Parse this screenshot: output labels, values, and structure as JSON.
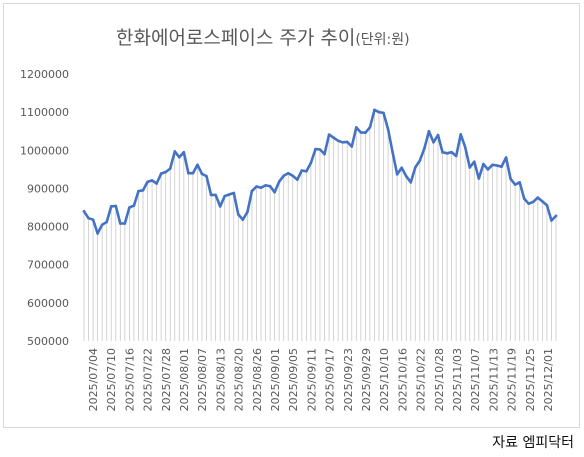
{
  "source_note": "자료 엠피닥터",
  "chart_data": {
    "type": "line",
    "title": "한화에어로스페이스 주가 추이",
    "title_unit": "(단위:원)",
    "ylim": [
      500000,
      1200000
    ],
    "y_ticks": [
      "1200000",
      "1100000",
      "1000000",
      "900000",
      "800000",
      "700000",
      "600000",
      "500000"
    ],
    "y_tick_values": [
      1200000,
      1100000,
      1000000,
      900000,
      800000,
      700000,
      600000,
      500000
    ],
    "x_tick_labels": [
      "2025/07/04",
      "2025/07/10",
      "2025/07/16",
      "2025/07/22",
      "2025/07/28",
      "2025/08/01",
      "2025/08/07",
      "2025/08/13",
      "2025/08/20",
      "2025/08/26",
      "2025/09/01",
      "2025/09/05",
      "2025/09/11",
      "2025/09/17",
      "2025/09/23",
      "2025/09/29",
      "2025/10/10",
      "2025/10/16",
      "2025/10/22",
      "2025/10/28",
      "2025/11/03",
      "2025/11/07",
      "2025/11/13",
      "2025/11/19",
      "2025/11/25",
      "2025/12/01"
    ],
    "grid": false,
    "legend": "none",
    "line_color": "#4472c4",
    "drop_line_color": "#c9c9c9",
    "series": [
      {
        "values": [
          840000,
          822000,
          818000,
          782000,
          805000,
          812000,
          853000,
          854000,
          808000,
          808000,
          850000,
          855000,
          893000,
          895000,
          917000,
          921000,
          913000,
          939000,
          943000,
          952000,
          997000,
          982000,
          995000,
          940000,
          940000,
          962000,
          938000,
          932000,
          883000,
          883000,
          853000,
          880000,
          884000,
          888000,
          832000,
          818000,
          838000,
          893000,
          905000,
          902000,
          908000,
          906000,
          890000,
          918000,
          933000,
          940000,
          933000,
          923000,
          947000,
          945000,
          967000,
          1003000,
          1002000,
          990000,
          1041000,
          1033000,
          1025000,
          1021000,
          1022000,
          1010000,
          1060000,
          1047000,
          1046000,
          1060000,
          1106000,
          1100000,
          1098000,
          1055000,
          995000,
          937000,
          954000,
          932000,
          916000,
          955000,
          973000,
          1005000,
          1050000,
          1021000,
          1040000,
          995000,
          992000,
          995000,
          985000,
          1042000,
          1008000,
          955000,
          970000,
          926000,
          964000,
          950000,
          962000,
          960000,
          957000,
          981000,
          925000,
          910000,
          916000,
          873000,
          860000,
          865000,
          876000,
          866000,
          856000,
          816000,
          828000
        ]
      }
    ]
  }
}
